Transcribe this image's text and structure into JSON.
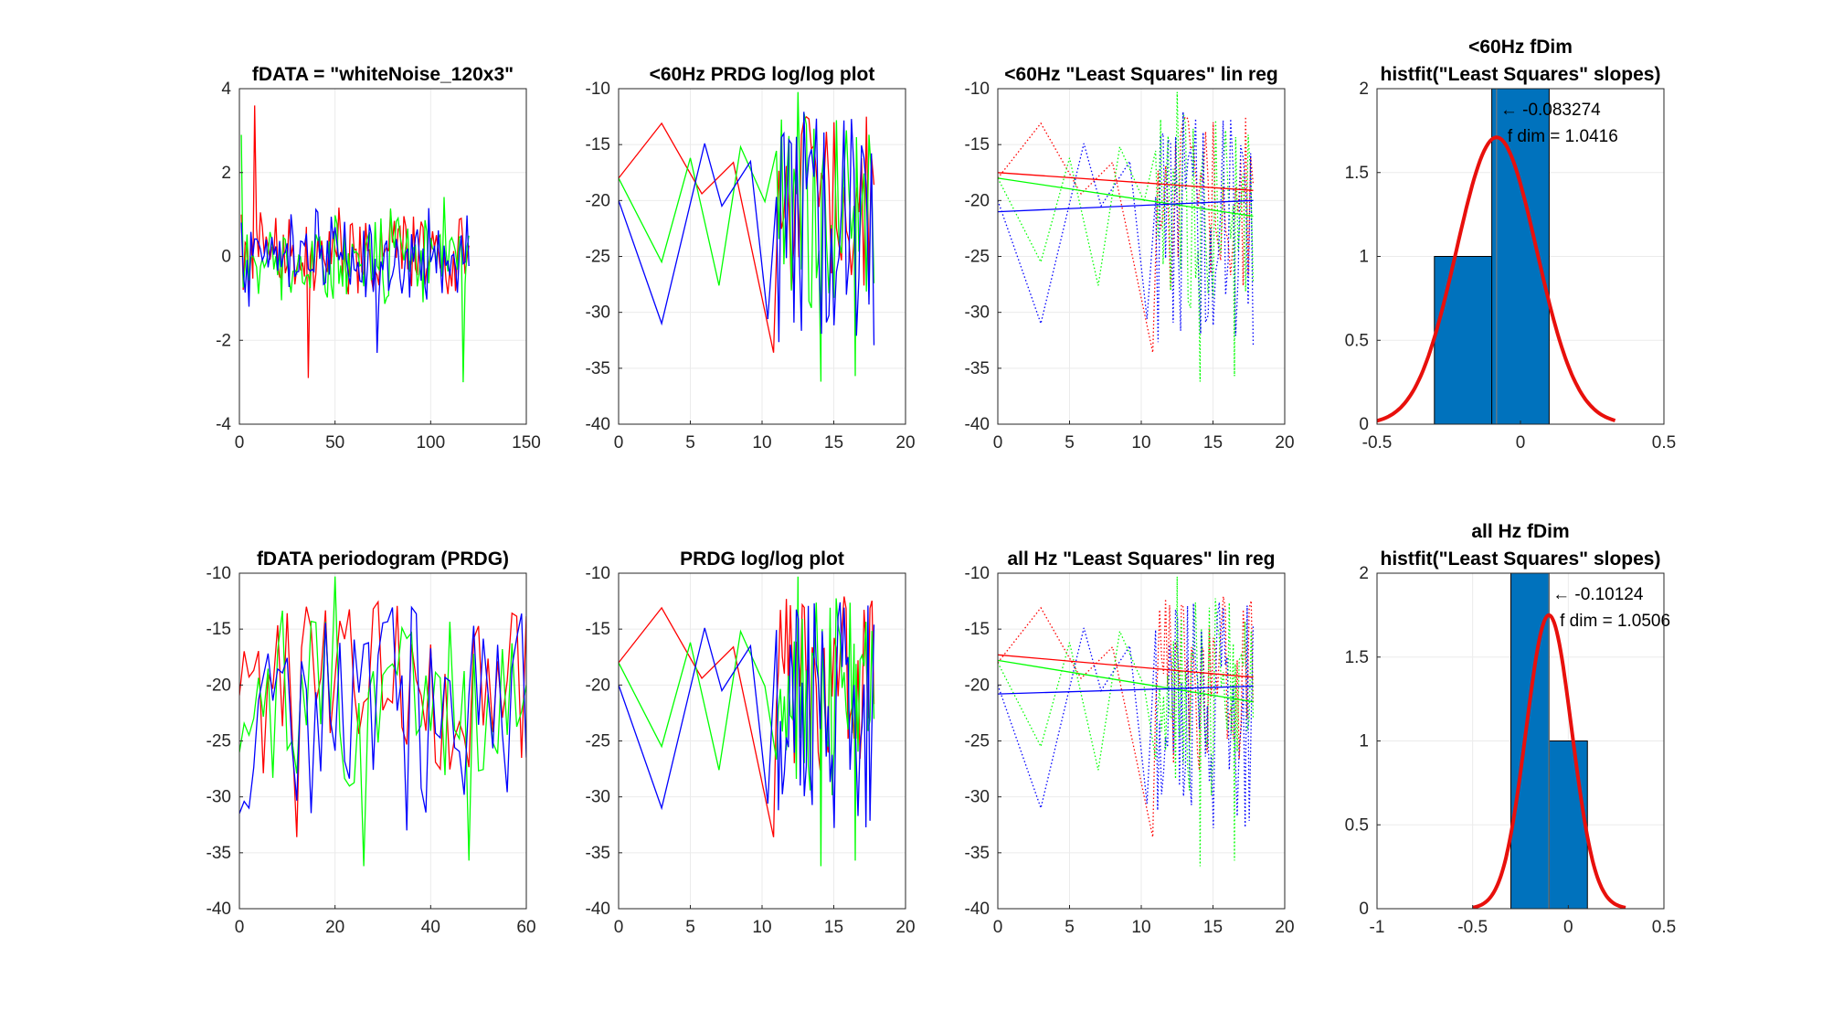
{
  "figure": {
    "colors": {
      "red": "#ff0000",
      "green": "#00ff00",
      "blue": "#0000ff",
      "bar": "#0072bd",
      "fit": "#e8100c",
      "axis": "#262626",
      "grid": "#ebebeb"
    }
  },
  "chart_data": [
    {
      "id": "p1",
      "type": "line",
      "title": [
        "fDATA = \"whiteNoise_120x3\""
      ],
      "xlim": [
        0,
        150
      ],
      "ylim": [
        -4,
        4
      ],
      "xticks": [
        0,
        50,
        100,
        150
      ],
      "yticks": [
        -4,
        -2,
        0,
        2,
        4
      ],
      "x_range": [
        1,
        120
      ],
      "points": 120,
      "series": [
        {
          "color": "red",
          "style": "solid",
          "seed": 11,
          "amp": 1.05,
          "extremes": [
            [
              8,
              3.6
            ],
            [
              36,
              -2.9
            ]
          ]
        },
        {
          "color": "green",
          "style": "solid",
          "seed": 23,
          "amp": 1.0,
          "extremes": [
            [
              1,
              2.9
            ],
            [
              117,
              -3.0
            ]
          ]
        },
        {
          "color": "blue",
          "style": "solid",
          "seed": 37,
          "amp": 0.9,
          "extremes": [
            [
              72,
              -2.3
            ]
          ]
        }
      ]
    },
    {
      "id": "p2",
      "type": "line",
      "title": [
        "<60Hz PRDG log/log plot"
      ],
      "xlim": [
        0,
        20
      ],
      "ylim": [
        -40,
        -10
      ],
      "xticks": [
        0,
        5,
        10,
        15,
        20
      ],
      "yticks": [
        -40,
        -35,
        -30,
        -25,
        -20,
        -15,
        -10
      ],
      "series": [
        {
          "color": "red",
          "style": "solid",
          "head": [
            [
              0,
              -18
            ],
            [
              3,
              -13.1
            ],
            [
              5.8,
              -19.4
            ],
            [
              8,
              -16.6
            ],
            [
              10.8,
              -33.6
            ]
          ],
          "seed": 51,
          "range": [
            11,
            17.8
          ],
          "n": 40,
          "lo": -28,
          "hi": -12
        },
        {
          "color": "green",
          "style": "solid",
          "head": [
            [
              0,
              -18
            ],
            [
              3,
              -25.5
            ],
            [
              5,
              -16.2
            ],
            [
              7,
              -27.6
            ],
            [
              8.5,
              -15.2
            ],
            [
              10.2,
              -20.1
            ],
            [
              12.5,
              -10.3
            ],
            [
              14.1,
              -36.2
            ],
            [
              16.5,
              -35.7
            ]
          ],
          "seed": 63,
          "range": [
            11,
            17.8
          ],
          "n": 40,
          "lo": -30,
          "hi": -12
        },
        {
          "color": "blue",
          "style": "solid",
          "head": [
            [
              0,
              -20
            ],
            [
              3,
              -31
            ],
            [
              6,
              -14.9
            ],
            [
              7.2,
              -20.5
            ],
            [
              9.2,
              -16.5
            ],
            [
              10.4,
              -30.6
            ]
          ],
          "seed": 79,
          "range": [
            11,
            17.8
          ],
          "n": 40,
          "lo": -33,
          "hi": -12
        }
      ]
    },
    {
      "id": "p3",
      "type": "line",
      "title": [
        "<60Hz \"Least Squares\" lin reg"
      ],
      "xlim": [
        0,
        20
      ],
      "ylim": [
        -40,
        -10
      ],
      "xticks": [
        0,
        5,
        10,
        15,
        20
      ],
      "yticks": [
        -40,
        -35,
        -30,
        -25,
        -20,
        -15,
        -10
      ],
      "series": [
        {
          "color": "red",
          "style": "dotted",
          "head": [
            [
              0,
              -18
            ],
            [
              3,
              -13.1
            ],
            [
              5.8,
              -19.4
            ],
            [
              8,
              -16.6
            ],
            [
              10.8,
              -33.6
            ]
          ],
          "seed": 51,
          "range": [
            11,
            17.8
          ],
          "n": 40,
          "lo": -28,
          "hi": -12
        },
        {
          "color": "green",
          "style": "dotted",
          "head": [
            [
              0,
              -18
            ],
            [
              3,
              -25.5
            ],
            [
              5,
              -16.2
            ],
            [
              7,
              -27.6
            ],
            [
              8.5,
              -15.2
            ],
            [
              10.2,
              -20.1
            ],
            [
              12.5,
              -10.3
            ],
            [
              14.1,
              -36.2
            ],
            [
              16.5,
              -35.7
            ]
          ],
          "seed": 63,
          "range": [
            11,
            17.8
          ],
          "n": 40,
          "lo": -30,
          "hi": -12
        },
        {
          "color": "blue",
          "style": "dotted",
          "head": [
            [
              0,
              -20
            ],
            [
              3,
              -31
            ],
            [
              6,
              -14.9
            ],
            [
              7.2,
              -20.5
            ],
            [
              9.2,
              -16.5
            ],
            [
              10.4,
              -30.6
            ]
          ],
          "seed": 79,
          "range": [
            11,
            17.8
          ],
          "n": 40,
          "lo": -33,
          "hi": -12
        },
        {
          "color": "red",
          "style": "solid",
          "line": [
            [
              0,
              -17.5
            ],
            [
              17.8,
              -19.1
            ]
          ]
        },
        {
          "color": "green",
          "style": "solid",
          "line": [
            [
              0,
              -18
            ],
            [
              17.8,
              -21.4
            ]
          ]
        },
        {
          "color": "blue",
          "style": "solid",
          "line": [
            [
              0,
              -21
            ],
            [
              17.8,
              -20
            ]
          ]
        }
      ]
    },
    {
      "id": "p4",
      "type": "bar",
      "title": [
        "<60Hz fDim",
        "histfit(\"Least Squares\" slopes)"
      ],
      "xlim": [
        -0.5,
        0.5
      ],
      "ylim": [
        0,
        2
      ],
      "xticks": [
        -0.5,
        0,
        0.5
      ],
      "yticks": [
        0,
        0.5,
        1,
        1.5,
        2
      ],
      "bars": [
        {
          "x0": -0.3,
          "x1": -0.1,
          "value": 1
        },
        {
          "x0": -0.1,
          "x1": 0.1,
          "value": 2
        }
      ],
      "fit": {
        "mu": -0.083274,
        "sigma": 0.14,
        "peak": 1.71,
        "range": [
          -0.5,
          0.33
        ]
      },
      "marker_x": -0.083274,
      "annotations": [
        "← -0.083274",
        "f dim = 1.0416"
      ]
    },
    {
      "id": "p5",
      "type": "line",
      "title": [
        "fDATA periodogram (PRDG)"
      ],
      "xlim": [
        0,
        60
      ],
      "ylim": [
        -40,
        -10
      ],
      "xticks": [
        0,
        20,
        40,
        60
      ],
      "yticks": [
        -40,
        -35,
        -30,
        -25,
        -20,
        -15,
        -10
      ],
      "x_range": [
        0,
        60
      ],
      "points": 61,
      "series": [
        {
          "color": "red",
          "style": "solid",
          "seed": 5,
          "lo": -28,
          "hi": -12,
          "extremes": [
            [
              12,
              -33.6
            ],
            [
              14,
              -13.0
            ]
          ]
        },
        {
          "color": "green",
          "style": "solid",
          "seed": 17,
          "lo": -30,
          "hi": -13,
          "extremes": [
            [
              20,
              -10.3
            ],
            [
              26,
              -36.2
            ],
            [
              48,
              -35.7
            ]
          ]
        },
        {
          "color": "blue",
          "style": "solid",
          "seed": 29,
          "lo": -32,
          "hi": -13,
          "extremes": [
            [
              2,
              -31.0
            ],
            [
              35,
              -33.0
            ]
          ]
        }
      ]
    },
    {
      "id": "p6",
      "type": "line",
      "title": [
        "PRDG log/log plot"
      ],
      "xlim": [
        0,
        20
      ],
      "ylim": [
        -40,
        -10
      ],
      "xticks": [
        0,
        5,
        10,
        15,
        20
      ],
      "yticks": [
        -40,
        -35,
        -30,
        -25,
        -20,
        -15,
        -10
      ],
      "series": [
        {
          "color": "red",
          "style": "solid",
          "head": [
            [
              0,
              -18
            ],
            [
              3,
              -13.1
            ],
            [
              5.8,
              -19.4
            ],
            [
              8,
              -16.6
            ],
            [
              10.8,
              -33.6
            ]
          ],
          "seed": 52,
          "range": [
            11,
            17.8
          ],
          "n": 50,
          "lo": -28,
          "hi": -12
        },
        {
          "color": "green",
          "style": "solid",
          "head": [
            [
              0,
              -18
            ],
            [
              3,
              -25.5
            ],
            [
              5,
              -16.2
            ],
            [
              7,
              -27.6
            ],
            [
              8.5,
              -15.2
            ],
            [
              10.2,
              -20.1
            ],
            [
              12.5,
              -10.3
            ],
            [
              14.1,
              -36.2
            ],
            [
              16.5,
              -35.7
            ]
          ],
          "seed": 64,
          "range": [
            11,
            17.8
          ],
          "n": 50,
          "lo": -30,
          "hi": -12
        },
        {
          "color": "blue",
          "style": "solid",
          "head": [
            [
              0,
              -20
            ],
            [
              3,
              -31
            ],
            [
              6,
              -14.9
            ],
            [
              7.2,
              -20.5
            ],
            [
              9.2,
              -16.5
            ],
            [
              10.4,
              -30.6
            ]
          ],
          "seed": 80,
          "range": [
            11,
            17.8
          ],
          "n": 50,
          "lo": -33,
          "hi": -12
        }
      ]
    },
    {
      "id": "p7",
      "type": "line",
      "title": [
        "all Hz \"Least Squares\" lin reg"
      ],
      "xlim": [
        0,
        20
      ],
      "ylim": [
        -40,
        -10
      ],
      "xticks": [
        0,
        5,
        10,
        15,
        20
      ],
      "yticks": [
        -40,
        -35,
        -30,
        -25,
        -20,
        -15,
        -10
      ],
      "series": [
        {
          "color": "red",
          "style": "dotted",
          "head": [
            [
              0,
              -18
            ],
            [
              3,
              -13.1
            ],
            [
              5.8,
              -19.4
            ],
            [
              8,
              -16.6
            ],
            [
              10.8,
              -33.6
            ]
          ],
          "seed": 52,
          "range": [
            11,
            17.8
          ],
          "n": 50,
          "lo": -28,
          "hi": -12
        },
        {
          "color": "green",
          "style": "dotted",
          "head": [
            [
              0,
              -18
            ],
            [
              3,
              -25.5
            ],
            [
              5,
              -16.2
            ],
            [
              7,
              -27.6
            ],
            [
              8.5,
              -15.2
            ],
            [
              10.2,
              -20.1
            ],
            [
              12.5,
              -10.3
            ],
            [
              14.1,
              -36.2
            ],
            [
              16.5,
              -35.7
            ]
          ],
          "seed": 64,
          "range": [
            11,
            17.8
          ],
          "n": 50,
          "lo": -30,
          "hi": -12
        },
        {
          "color": "blue",
          "style": "dotted",
          "head": [
            [
              0,
              -20
            ],
            [
              3,
              -31
            ],
            [
              6,
              -14.9
            ],
            [
              7.2,
              -20.5
            ],
            [
              9.2,
              -16.5
            ],
            [
              10.4,
              -30.6
            ]
          ],
          "seed": 80,
          "range": [
            11,
            17.8
          ],
          "n": 50,
          "lo": -33,
          "hi": -12
        },
        {
          "color": "red",
          "style": "solid",
          "line": [
            [
              0,
              -17.3
            ],
            [
              17.8,
              -19.3
            ]
          ]
        },
        {
          "color": "green",
          "style": "solid",
          "line": [
            [
              0,
              -17.8
            ],
            [
              17.8,
              -21.5
            ]
          ]
        },
        {
          "color": "blue",
          "style": "solid",
          "line": [
            [
              0,
              -20.8
            ],
            [
              17.8,
              -20.1
            ]
          ]
        }
      ]
    },
    {
      "id": "p8",
      "type": "bar",
      "title": [
        "all Hz fDim",
        "histfit(\"Least Squares\" slopes)"
      ],
      "xlim": [
        -1,
        0.5
      ],
      "ylim": [
        0,
        2
      ],
      "xticks": [
        -1,
        -0.5,
        0,
        0.5
      ],
      "yticks": [
        0,
        0.5,
        1,
        1.5,
        2
      ],
      "bars": [
        {
          "x0": -0.3,
          "x1": -0.1,
          "value": 2
        },
        {
          "x0": -0.1,
          "x1": 0.1,
          "value": 1
        }
      ],
      "fit": {
        "mu": -0.10124,
        "sigma": 0.12,
        "peak": 1.75,
        "range": [
          -0.5,
          0.3
        ]
      },
      "marker_x": -0.10124,
      "annotations": [
        "← -0.10124",
        "f dim = 1.0506"
      ]
    }
  ]
}
